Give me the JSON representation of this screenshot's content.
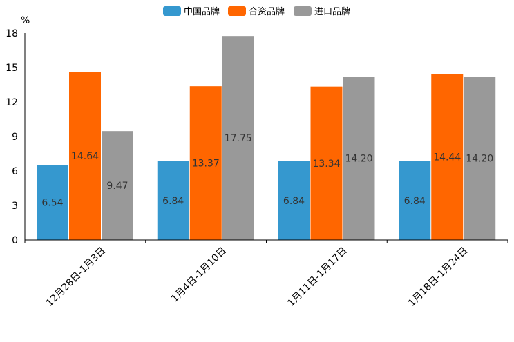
{
  "chart_data": {
    "type": "bar",
    "title": "",
    "xlabel": "",
    "ylabel": "%",
    "ylim": [
      0,
      18
    ],
    "yticks": [
      "0",
      "3",
      "6",
      "9",
      "12",
      "15",
      "18"
    ],
    "grid": false,
    "legend_position": "top-center",
    "categories": [
      "12月28日-1月3日",
      "1月4日-1月10日",
      "1月11日-1月17日",
      "1月18日-1月24日"
    ],
    "series": [
      {
        "name": "中国品牌",
        "color": "#3598CF",
        "values": [
          6.54,
          6.84,
          6.84,
          6.84
        ],
        "labels": [
          "6.54",
          "6.84",
          "6.84",
          "6.84"
        ]
      },
      {
        "name": "合资品牌",
        "color": "#FF6600",
        "values": [
          14.64,
          13.37,
          13.34,
          14.44
        ],
        "labels": [
          "14.64",
          "13.37",
          "13.34",
          "14.44"
        ]
      },
      {
        "name": "进口品牌",
        "color": "#999999",
        "values": [
          9.47,
          17.75,
          14.2,
          14.2
        ],
        "labels": [
          "9.47",
          "17.75",
          "14.20",
          "14.20"
        ]
      }
    ]
  }
}
